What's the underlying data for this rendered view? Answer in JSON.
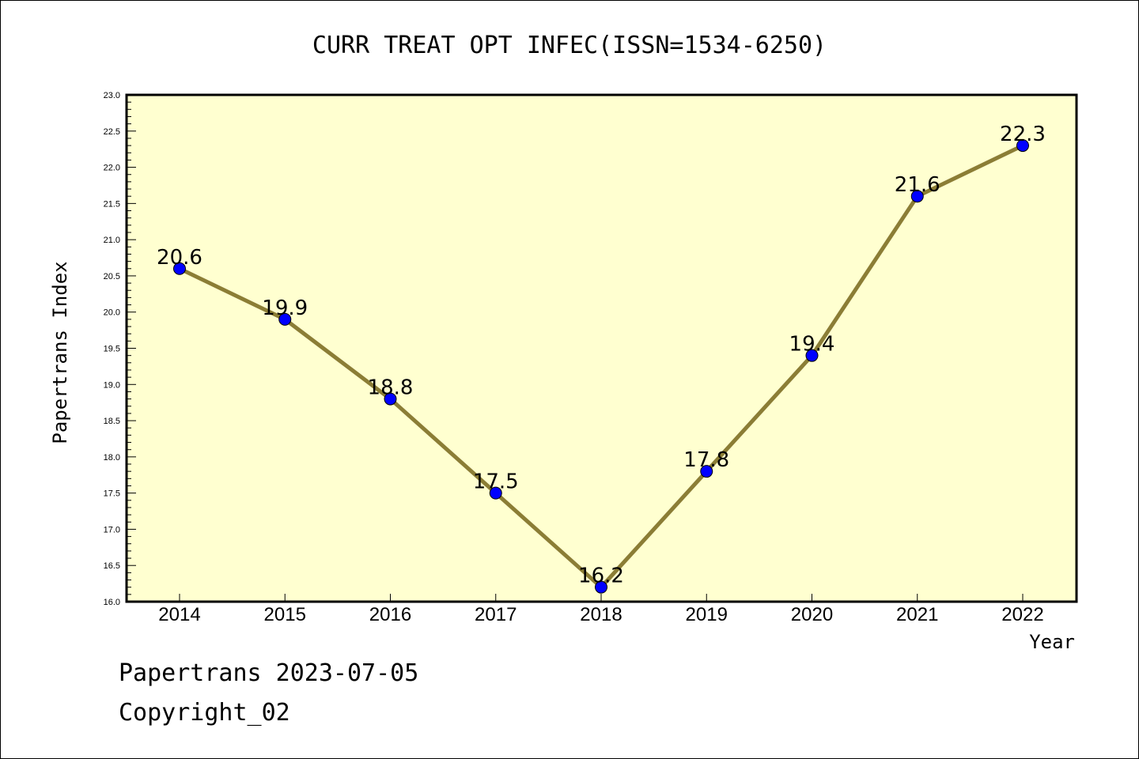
{
  "chart_data": {
    "type": "line",
    "title": "CURR TREAT OPT INFEC(ISSN=1534-6250)",
    "xlabel": "Year",
    "ylabel": "Papertrans Index",
    "categories": [
      "2014",
      "2015",
      "2016",
      "2017",
      "2018",
      "2019",
      "2020",
      "2021",
      "2022"
    ],
    "values": [
      20.6,
      19.9,
      18.8,
      17.5,
      16.2,
      17.8,
      19.4,
      21.6,
      22.3
    ],
    "data_labels": [
      "20.6",
      "19.9",
      "18.8",
      "17.5",
      "16.2",
      "17.8",
      "19.4",
      "21.6",
      "22.3"
    ],
    "ylim": [
      16.0,
      23.0
    ],
    "yticks": [
      "16.0",
      "16.5",
      "17.0",
      "17.5",
      "18.0",
      "18.5",
      "19.0",
      "19.5",
      "20.0",
      "20.5",
      "21.0",
      "21.5",
      "22.0",
      "22.5",
      "23.0"
    ],
    "grid": false,
    "colors": {
      "plot_background": "#FFFFD0",
      "line": "#8B7D35",
      "marker": "#0000FF"
    }
  },
  "footer": {
    "line1": "Papertrans 2023-07-05",
    "line2": "Copyright_02"
  }
}
